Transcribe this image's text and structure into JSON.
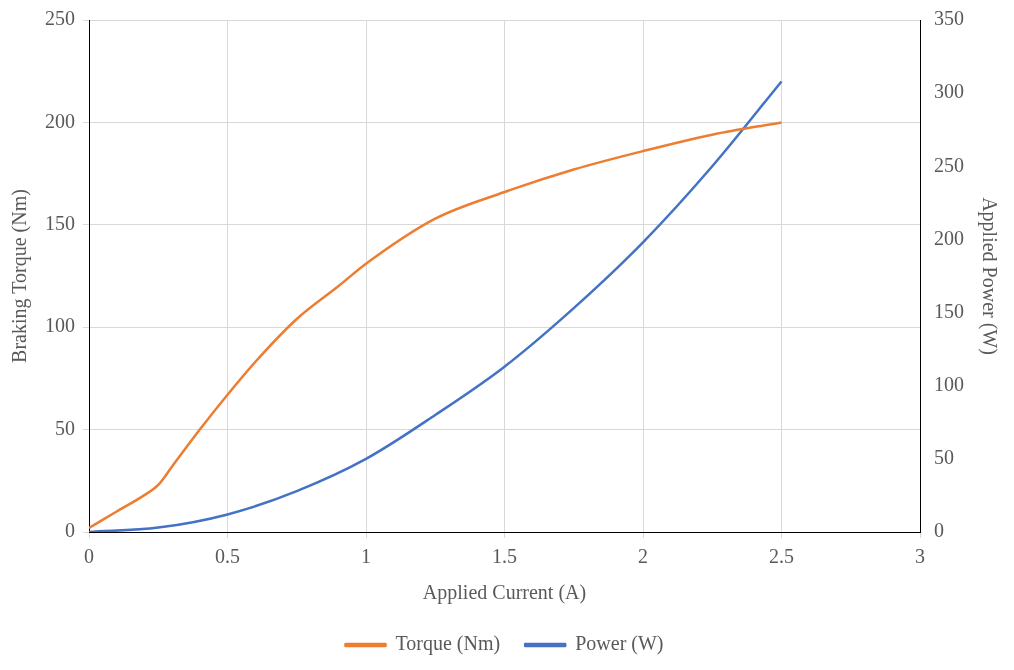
{
  "chart_data": {
    "type": "line",
    "xlabel": "Applied Current (A)",
    "ylabel": "Braking Torque (Nm)",
    "y2label": "Applied Power (W)",
    "xlim": [
      0,
      3
    ],
    "xticks": [
      0,
      0.5,
      1,
      1.5,
      2,
      2.5,
      3
    ],
    "ylim": [
      0,
      250
    ],
    "yticks": [
      0,
      50,
      100,
      150,
      200,
      250
    ],
    "y2lim": [
      0,
      350
    ],
    "y2ticks": [
      0,
      50,
      100,
      150,
      200,
      250,
      300,
      350
    ],
    "grid": true,
    "legend": "bottom",
    "marker": "none",
    "line_style": "solid",
    "series": [
      {
        "name": "Torque (Nm)",
        "color": "#ed7d31",
        "x": [
          0,
          0.1,
          0.2,
          0.25,
          0.3,
          0.4,
          0.5,
          0.6,
          0.75,
          0.9,
          1,
          1.25,
          1.5,
          1.75,
          2,
          2.25,
          2.5
        ],
        "values": [
          2,
          10,
          18,
          23,
          32,
          50,
          67,
          83,
          104,
          120,
          131,
          153,
          166,
          177,
          186,
          194,
          200
        ]
      },
      {
        "name": "Power (W)",
        "color": "#4472c4",
        "axis": "y2",
        "x": [
          0,
          0.25,
          0.5,
          0.75,
          1,
          1.25,
          1.5,
          1.75,
          2,
          2.25,
          2.5
        ],
        "values": [
          0,
          3,
          12,
          28,
          50,
          80,
          113,
          153,
          198,
          250,
          308
        ]
      }
    ]
  }
}
